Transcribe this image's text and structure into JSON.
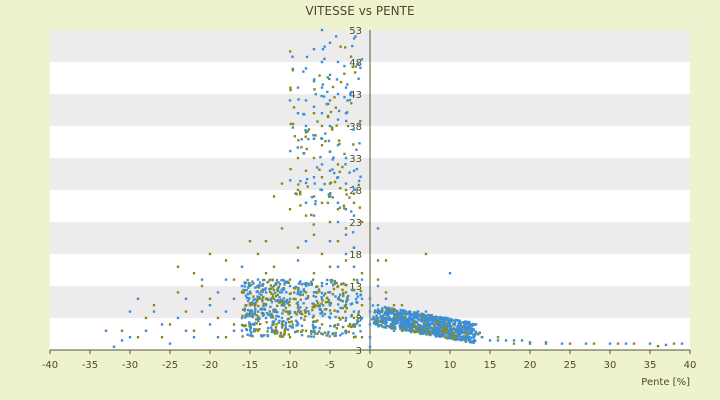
{
  "chart_data": {
    "type": "scatter",
    "title": "VITESSE vs PENTE",
    "xlabel": "Pente [%]",
    "ylabel": "",
    "xlim": [
      -40,
      40
    ],
    "ylim": [
      3,
      53
    ],
    "xticks": [
      -40,
      -35,
      -30,
      -25,
      -20,
      -15,
      -10,
      -5,
      0,
      5,
      10,
      15,
      20,
      25,
      30,
      35,
      40
    ],
    "yticks": [
      3,
      8,
      13,
      18,
      23,
      28,
      33,
      38,
      43,
      48,
      53
    ],
    "grid": true,
    "legend": "none",
    "series": [
      {
        "color": "#8a8a1a",
        "points": [
          [
            -31,
            6
          ],
          [
            -29,
            5
          ],
          [
            -28,
            8
          ],
          [
            -27,
            10
          ],
          [
            -25,
            7
          ],
          [
            -24,
            12
          ],
          [
            -23,
            9
          ],
          [
            -22,
            15
          ],
          [
            -21,
            13
          ],
          [
            -20,
            11
          ],
          [
            -19,
            8
          ],
          [
            -18,
            17
          ],
          [
            -17,
            14
          ],
          [
            -16,
            12
          ],
          [
            -15,
            9
          ],
          [
            -14,
            18
          ],
          [
            -13,
            20
          ],
          [
            -12,
            16
          ],
          [
            -12,
            11
          ],
          [
            -11,
            22
          ],
          [
            -11,
            7
          ],
          [
            -10,
            25
          ],
          [
            -10,
            14
          ],
          [
            -9,
            28
          ],
          [
            -9,
            19
          ],
          [
            -9,
            9
          ],
          [
            -8,
            31
          ],
          [
            -8,
            24
          ],
          [
            -8,
            12
          ],
          [
            -7,
            36
          ],
          [
            -7,
            33
          ],
          [
            -7,
            27
          ],
          [
            -7,
            21
          ],
          [
            -7,
            15
          ],
          [
            -6,
            38
          ],
          [
            -6,
            30
          ],
          [
            -6,
            26
          ],
          [
            -6,
            18
          ],
          [
            -5,
            34
          ],
          [
            -5,
            29
          ],
          [
            -5,
            23
          ],
          [
            -5,
            16
          ],
          [
            -5,
            10
          ],
          [
            -4,
            32
          ],
          [
            -4,
            25
          ],
          [
            -4,
            20
          ],
          [
            -4,
            13
          ],
          [
            -3,
            28
          ],
          [
            -3,
            22
          ],
          [
            -3,
            17
          ],
          [
            -3,
            12
          ],
          [
            -3,
            6
          ],
          [
            -2,
            26
          ],
          [
            -2,
            19
          ],
          [
            -2,
            14
          ],
          [
            -2,
            8
          ],
          [
            -1,
            23
          ],
          [
            -1,
            15
          ],
          [
            -1,
            10
          ],
          [
            -1,
            5
          ],
          [
            -15,
            20
          ],
          [
            -13,
            15
          ],
          [
            -17,
            7
          ],
          [
            -20,
            18
          ],
          [
            -24,
            16
          ],
          [
            -26,
            5
          ],
          [
            -22,
            6
          ],
          [
            -18,
            5
          ],
          [
            -14,
            6
          ],
          [
            -10,
            5
          ],
          [
            -8,
            6
          ],
          [
            -6,
            7
          ],
          [
            -4,
            7
          ],
          [
            -2,
            5
          ],
          [
            -12,
            27
          ],
          [
            -9,
            33
          ],
          [
            -11,
            29
          ],
          [
            -6,
            35
          ],
          [
            -8,
            37
          ],
          [
            -7,
            40
          ],
          [
            1,
            9
          ],
          [
            2,
            8
          ],
          [
            3,
            7
          ],
          [
            4,
            8
          ],
          [
            5,
            7
          ],
          [
            6,
            6
          ],
          [
            7,
            7
          ],
          [
            8,
            6
          ],
          [
            9,
            6
          ],
          [
            10,
            5
          ],
          [
            12,
            5
          ],
          [
            14,
            5
          ],
          [
            16,
            5
          ],
          [
            18,
            4
          ],
          [
            20,
            4
          ],
          [
            22,
            4
          ],
          [
            25,
            4
          ],
          [
            28,
            4
          ],
          [
            31,
            4
          ],
          [
            33,
            4
          ],
          [
            36,
            3.6
          ],
          [
            38,
            4
          ],
          [
            2,
            12
          ],
          [
            3,
            10
          ],
          [
            4,
            10
          ],
          [
            6,
            9
          ],
          [
            1,
            14
          ],
          [
            1,
            17
          ],
          [
            2,
            17
          ],
          [
            7,
            18
          ]
        ]
      },
      {
        "color": "#3b8fd9",
        "points": [
          [
            -33,
            6
          ],
          [
            -32,
            3.5
          ],
          [
            -31,
            4.5
          ],
          [
            -30,
            5
          ],
          [
            -30,
            9
          ],
          [
            -29,
            11
          ],
          [
            -28,
            6
          ],
          [
            -27,
            9
          ],
          [
            -26,
            7
          ],
          [
            -25,
            4
          ],
          [
            -24,
            8
          ],
          [
            -23,
            11
          ],
          [
            -23,
            6
          ],
          [
            -22,
            5
          ],
          [
            -21,
            9
          ],
          [
            -21,
            14
          ],
          [
            -20,
            7
          ],
          [
            -20,
            10
          ],
          [
            -19,
            12
          ],
          [
            -19,
            5
          ],
          [
            -18,
            9
          ],
          [
            -18,
            14
          ],
          [
            -17,
            11
          ],
          [
            -17,
            6
          ],
          [
            -16,
            8
          ],
          [
            -16,
            13
          ],
          [
            -16,
            16
          ],
          [
            -15,
            10
          ],
          [
            -15,
            7
          ],
          [
            -15,
            12
          ],
          [
            -14,
            9
          ],
          [
            -14,
            11
          ],
          [
            -14,
            14
          ],
          [
            -13,
            8
          ],
          [
            -13,
            12
          ],
          [
            -13,
            10
          ],
          [
            -12,
            9
          ],
          [
            -12,
            13
          ],
          [
            -12,
            6
          ],
          [
            -11,
            10
          ],
          [
            -11,
            12
          ],
          [
            -11,
            8
          ],
          [
            -10,
            9
          ],
          [
            -10,
            11
          ],
          [
            -10,
            13
          ],
          [
            -9,
            10
          ],
          [
            -9,
            12
          ],
          [
            -9,
            7
          ],
          [
            -8,
            11
          ],
          [
            -8,
            13
          ],
          [
            -8,
            9
          ],
          [
            -7,
            12
          ],
          [
            -7,
            10
          ],
          [
            -7,
            6
          ],
          [
            -6,
            11
          ],
          [
            -6,
            13
          ],
          [
            -6,
            9
          ],
          [
            -5,
            10
          ],
          [
            -5,
            8
          ],
          [
            -5,
            12
          ],
          [
            -4,
            9
          ],
          [
            -4,
            11
          ],
          [
            -3,
            8
          ],
          [
            -3,
            10
          ],
          [
            -2,
            9
          ],
          [
            -2,
            7
          ],
          [
            -1,
            8
          ],
          [
            -1,
            11
          ],
          [
            -9,
            44
          ],
          [
            -8,
            47
          ],
          [
            -8,
            42
          ],
          [
            -7,
            50
          ],
          [
            -7,
            45
          ],
          [
            -7,
            41
          ],
          [
            -6,
            53
          ],
          [
            -6,
            48
          ],
          [
            -6,
            44
          ],
          [
            -6,
            40
          ],
          [
            -5,
            51
          ],
          [
            -5,
            46
          ],
          [
            -5,
            42
          ],
          [
            -5,
            38
          ],
          [
            -4,
            48
          ],
          [
            -4,
            43
          ],
          [
            -4,
            39
          ],
          [
            -3,
            44
          ],
          [
            -3,
            40
          ],
          [
            -6,
            36
          ],
          [
            -5,
            34
          ],
          [
            -4,
            35
          ],
          [
            -3,
            33
          ],
          [
            -5,
            31
          ],
          [
            -4,
            30
          ],
          [
            -3,
            29
          ],
          [
            -2,
            31
          ],
          [
            -5,
            27
          ],
          [
            -4,
            26
          ],
          [
            -3,
            25
          ],
          [
            -6,
            28
          ],
          [
            -4,
            23
          ],
          [
            -3,
            21
          ],
          [
            -2,
            24
          ],
          [
            -5,
            20
          ],
          [
            -3,
            18
          ],
          [
            -2,
            19
          ],
          [
            -4,
            16
          ],
          [
            -2,
            16
          ],
          [
            -1,
            14
          ],
          [
            -8,
            38
          ],
          [
            -9,
            40
          ],
          [
            -10,
            42
          ],
          [
            -7,
            36
          ],
          [
            -6,
            32
          ],
          [
            -7,
            30
          ],
          [
            -8,
            26
          ],
          [
            -7,
            24
          ],
          [
            -8,
            20
          ],
          [
            -9,
            17
          ],
          [
            1,
            8
          ],
          [
            1,
            7
          ],
          [
            2,
            7.5
          ],
          [
            2,
            6.5
          ],
          [
            3,
            8
          ],
          [
            3,
            7
          ],
          [
            3,
            6
          ],
          [
            4,
            8.5
          ],
          [
            4,
            7
          ],
          [
            4,
            6
          ],
          [
            5,
            8
          ],
          [
            5,
            7
          ],
          [
            5,
            6
          ],
          [
            6,
            8
          ],
          [
            6,
            7
          ],
          [
            6,
            6.5
          ],
          [
            7,
            7.5
          ],
          [
            7,
            6.5
          ],
          [
            8,
            7
          ],
          [
            8,
            6
          ],
          [
            9,
            6.5
          ],
          [
            9,
            5.5
          ],
          [
            10,
            6
          ],
          [
            10,
            5.5
          ],
          [
            11,
            6
          ],
          [
            11,
            5.5
          ],
          [
            12,
            5.5
          ],
          [
            12,
            5
          ],
          [
            13,
            5
          ],
          [
            14,
            5
          ],
          [
            15,
            4.5
          ],
          [
            16,
            4.5
          ],
          [
            17,
            4.5
          ],
          [
            18,
            4.5
          ],
          [
            19,
            4.5
          ],
          [
            20,
            4.2
          ],
          [
            22,
            4.2
          ],
          [
            24,
            4
          ],
          [
            27,
            4
          ],
          [
            30,
            4
          ],
          [
            32,
            4
          ],
          [
            35,
            4
          ],
          [
            37,
            3.8
          ],
          [
            39,
            4
          ],
          [
            2,
            9
          ],
          [
            3,
            9
          ],
          [
            5,
            9
          ],
          [
            6,
            9
          ],
          [
            7,
            9
          ],
          [
            8,
            8
          ],
          [
            0,
            3.5
          ],
          [
            0,
            5
          ],
          [
            0,
            7
          ],
          [
            0,
            9
          ],
          [
            0,
            11
          ],
          [
            1,
            13
          ],
          [
            1,
            22
          ],
          [
            1,
            10
          ],
          [
            2,
            11
          ],
          [
            10,
            15
          ]
        ]
      }
    ]
  }
}
